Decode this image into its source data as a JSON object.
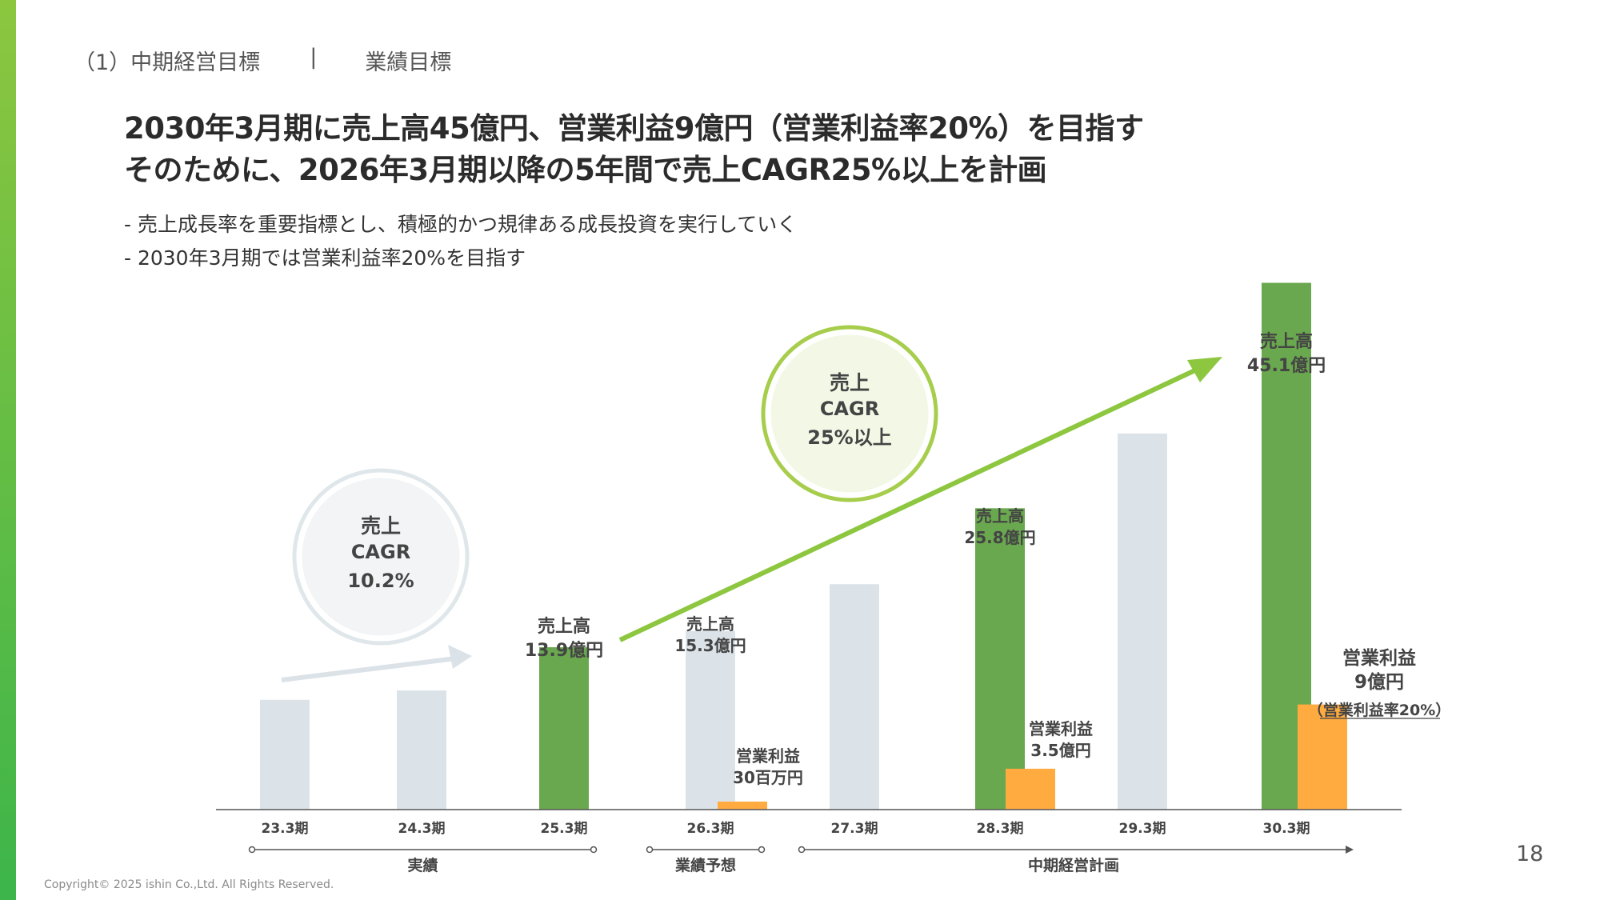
{
  "breadcrumb": {
    "section": "（1）中期経営目標",
    "separator": "|",
    "current": "業績目標"
  },
  "headline": {
    "line1": "2030年3月期に売上高45億円、営業利益9億円（営業利益率20%）を目指す",
    "line2": "そのために、2026年3月期以降の5年間で売上CAGR25%以上を計画"
  },
  "bullets": [
    "- 売上成長率を重要指標とし、積極的かつ規律ある成長投資を実行していく",
    "- 2030年3月期では営業利益率20%を目指す"
  ],
  "page_number": "18",
  "copyright": "Copyright© 2025 ishin Co.,Ltd. All Rights Reserved.",
  "colors": {
    "accent_green": "#6aa84f",
    "past_bar": "#dce3e8",
    "profit_orange": "#ffab40",
    "arrow_green": "#8dc63f",
    "arrow_gray": "#dce3e8",
    "sidebar_top": "#8cc63f",
    "sidebar_bottom": "#3db54a"
  },
  "chart_data": {
    "type": "bar",
    "categories": [
      "23.3期",
      "24.3期",
      "25.3期",
      "26.3期",
      "27.3期",
      "28.3期",
      "29.3期",
      "30.3期"
    ],
    "series": [
      {
        "name": "売上高",
        "unit": "億円",
        "values": [
          9.4,
          10.2,
          13.9,
          15.3,
          19.3,
          25.8,
          32.2,
          45.1
        ],
        "highlighted": [
          false,
          false,
          true,
          false,
          false,
          true,
          false,
          true
        ],
        "labels": [
          null,
          null,
          "売上高\n13.9億円",
          "売上高\n15.3億円",
          null,
          "売上高\n25.8億円",
          null,
          "売上高\n45.1億円"
        ]
      },
      {
        "name": "営業利益",
        "unit": "億円",
        "values": [
          null,
          null,
          null,
          0.3,
          null,
          3.5,
          null,
          9
        ],
        "labels": [
          null,
          null,
          null,
          "営業利益\n30百万円",
          null,
          "営業利益\n3.5億円",
          null,
          "営業利益\n9億円"
        ]
      }
    ],
    "profit_margin_note": "（営業利益率20%）",
    "cagr_bubbles": [
      {
        "line1": "売上",
        "line2": "CAGR",
        "line3": "10.2%",
        "style": "past"
      },
      {
        "line1": "売上",
        "line2": "CAGR",
        "line3": "25%以上",
        "style": "plan"
      }
    ],
    "periods": [
      {
        "label": "実績",
        "from": 0,
        "to": 2
      },
      {
        "label": "業績予想",
        "from": 3,
        "to": 3
      },
      {
        "label": "中期経営計画",
        "from": 4,
        "to": 7
      }
    ],
    "ylim": [
      0,
      50
    ],
    "grid": false,
    "legend": "none"
  }
}
